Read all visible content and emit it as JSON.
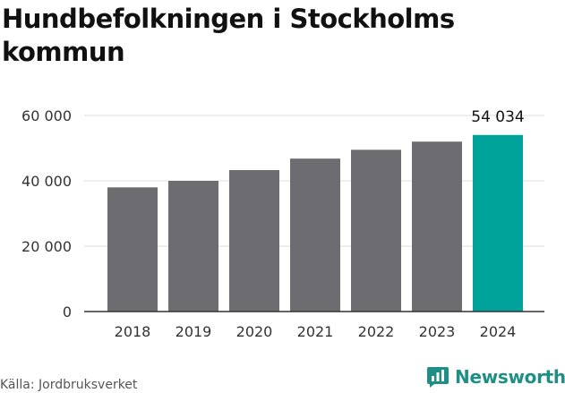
{
  "title": "Hundbefolkningen i Stockholms kommun",
  "source": "Källa: Jordbruksverket",
  "brand": {
    "name": "Newsworthy",
    "icon": "newsworthy-chart-icon"
  },
  "colors": {
    "bar": "#6d6c70",
    "highlight": "#00a39a",
    "grid": "#dddddd",
    "axis": "#333333",
    "brand": "#1f8f86"
  },
  "chart_data": {
    "type": "bar",
    "title": "Hundbefolkningen i Stockholms kommun",
    "categories": [
      "2018",
      "2019",
      "2020",
      "2021",
      "2022",
      "2023",
      "2024"
    ],
    "values": [
      38000,
      40000,
      43300,
      46800,
      49500,
      52000,
      54034
    ],
    "highlight_index": 6,
    "data_labels": [
      {
        "index": 6,
        "text": "54 034"
      }
    ],
    "yticks": [
      0,
      20000,
      40000,
      60000
    ],
    "ytick_labels": [
      "0",
      "20 000",
      "40 000",
      "60 000"
    ],
    "ylim": [
      0,
      60000
    ],
    "xlabel": "",
    "ylabel": "",
    "grid": true
  }
}
